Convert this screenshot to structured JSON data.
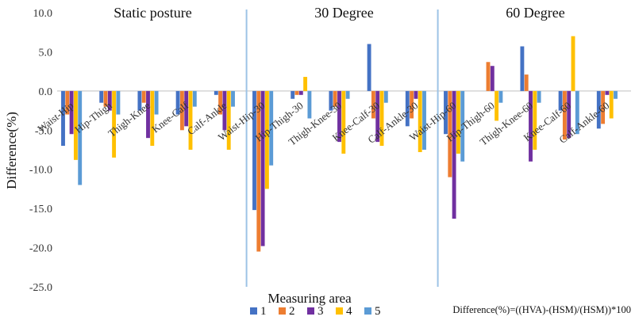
{
  "chart_data": {
    "type": "bar",
    "ylabel": "Difference(%)",
    "xlabel": "Measuring area",
    "formula": "Difference(%)=((HVA)-(HSM)/(HSM))*100",
    "ylim": [
      -25,
      10
    ],
    "yticks": [
      "10.0",
      "5.0",
      "0.0",
      "-5.0",
      "-10.0",
      "-15.0",
      "-20.0",
      "-25.0"
    ],
    "grid": false,
    "legend_position": "bottom-center",
    "sections": [
      {
        "title": "Static posture"
      },
      {
        "title": "30 Degree"
      },
      {
        "title": "60 Degree"
      }
    ],
    "categories": [
      "Waist-Hip",
      "Hip-Thigh",
      "Thigh-Knee",
      "Knee-Calf",
      "Calf-Ankle",
      "Waist-Hip-30",
      "Hip-Thigh-30",
      "Thigh-Knee-30",
      "Knee-Calf-30",
      "Calf-Ankle-30",
      "Waist-Hip-60",
      "Hip-Thigh-60",
      "Thigh-Knee-60",
      "Knee-Calf-60",
      "Calf-Ankle-60"
    ],
    "series": [
      {
        "name": "1",
        "color": "#4472c4",
        "values": [
          -7.0,
          -1.5,
          -2.5,
          -3.0,
          -0.5,
          -15.2,
          -1.0,
          -2.5,
          6.0,
          -4.5,
          -5.5,
          0.0,
          5.7,
          -2.5,
          -4.8
        ]
      },
      {
        "name": "2",
        "color": "#ed7d31",
        "values": [
          -3.0,
          -2.0,
          -1.5,
          -5.0,
          -3.0,
          -20.5,
          -0.5,
          -2.0,
          -3.5,
          -3.5,
          -11.0,
          3.7,
          2.1,
          -6.2,
          -4.2
        ]
      },
      {
        "name": "3",
        "color": "#7030a0",
        "values": [
          -5.5,
          -2.5,
          -6.0,
          -4.5,
          -5.0,
          -19.8,
          -0.5,
          -6.5,
          -6.5,
          -1.0,
          -16.3,
          3.2,
          -9.0,
          -6.0,
          -0.5
        ]
      },
      {
        "name": "4",
        "color": "#ffc000",
        "values": [
          -8.8,
          -8.5,
          -7.0,
          -7.5,
          -7.5,
          -12.5,
          1.8,
          -8.0,
          -7.0,
          -7.8,
          -8.0,
          -3.8,
          -7.5,
          7.0,
          -3.5
        ]
      },
      {
        "name": "5",
        "color": "#5b9bd5",
        "values": [
          -12.0,
          -3.0,
          -3.0,
          -2.0,
          -2.0,
          -9.5,
          -3.5,
          -1.0,
          -1.5,
          -7.5,
          -9.0,
          -1.5,
          -1.5,
          -5.5,
          -1.0
        ]
      }
    ]
  }
}
